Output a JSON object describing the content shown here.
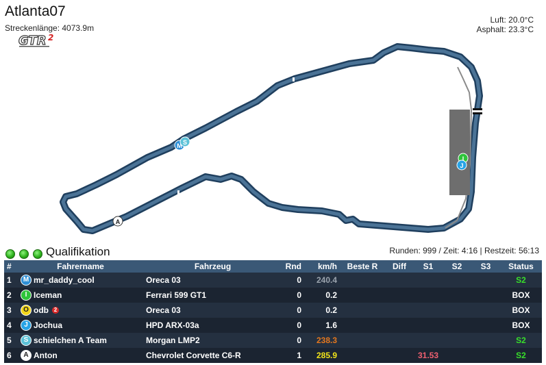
{
  "track": {
    "name": "Atlanta07",
    "length": "Streckenlänge: 4073.9m",
    "logo_text": "GTR2"
  },
  "weather": {
    "air": "Luft: 20.0°C",
    "asphalt": "Asphalt: 23.3°C"
  },
  "map": {
    "markers": [
      {
        "letter": "M",
        "color": "#2e8fd6"
      },
      {
        "letter": "S",
        "color": "#5cc2d8"
      },
      {
        "letter": "I",
        "color": "#2ec43a"
      },
      {
        "letter": "J",
        "color": "#27a3e6"
      },
      {
        "letter": "A",
        "color": "#ffffff"
      }
    ]
  },
  "session": {
    "name": "Qualifikation",
    "info": "Runden: 999 / Zeit: 4:16 | Restzeit: 56:13"
  },
  "table": {
    "headers": [
      "#",
      "Fahrername",
      "Fahrzeug",
      "Rnd",
      "km/h",
      "Beste R",
      "Diff",
      "S1",
      "S2",
      "S3",
      "Status"
    ],
    "rows": [
      {
        "pos": "1",
        "badge": "M",
        "badge_bg": "#2e8fd6",
        "badge_fg": "#ffffff",
        "name": "mr_daddy_cool",
        "flag": "",
        "car": "Oreca 03",
        "rnd": "0",
        "kmh": "240.4",
        "kmh_class": "grey",
        "best": "",
        "diff": "",
        "s1": "",
        "s2": "",
        "s3": "",
        "status": "S2",
        "status_class": "green"
      },
      {
        "pos": "2",
        "badge": "I",
        "badge_bg": "#2ec43a",
        "badge_fg": "#ffffff",
        "name": "Iceman",
        "flag": "",
        "car": "Ferrari 599 GT1",
        "rnd": "0",
        "kmh": "0.2",
        "kmh_class": "",
        "best": "",
        "diff": "",
        "s1": "",
        "s2": "",
        "s3": "",
        "status": "BOX",
        "status_class": ""
      },
      {
        "pos": "3",
        "badge": "O",
        "badge_bg": "#f2d51a",
        "badge_fg": "#222222",
        "name": "odb",
        "flag": "2",
        "car": "Oreca 03",
        "rnd": "0",
        "kmh": "0.2",
        "kmh_class": "",
        "best": "",
        "diff": "",
        "s1": "",
        "s2": "",
        "s3": "",
        "status": "BOX",
        "status_class": ""
      },
      {
        "pos": "4",
        "badge": "J",
        "badge_bg": "#27a3e6",
        "badge_fg": "#ffffff",
        "name": "Jochua",
        "flag": "",
        "car": "HPD ARX-03a",
        "rnd": "0",
        "kmh": "1.6",
        "kmh_class": "",
        "best": "",
        "diff": "",
        "s1": "",
        "s2": "",
        "s3": "",
        "status": "BOX",
        "status_class": ""
      },
      {
        "pos": "5",
        "badge": "S",
        "badge_bg": "#5cc2d8",
        "badge_fg": "#ffffff",
        "name": "schielchen A Team",
        "flag": "",
        "car": "Morgan LMP2",
        "rnd": "0",
        "kmh": "238.3",
        "kmh_class": "orange",
        "best": "",
        "diff": "",
        "s1": "",
        "s2": "",
        "s3": "",
        "status": "S2",
        "status_class": "green"
      },
      {
        "pos": "6",
        "badge": "A",
        "badge_bg": "#ffffff",
        "badge_fg": "#222222",
        "name": "Anton",
        "flag": "",
        "car": "Chevrolet Corvette C6-R",
        "rnd": "1",
        "kmh": "285.9",
        "kmh_class": "yellow",
        "best": "",
        "diff": "",
        "s1": "31.53",
        "s2": "",
        "s3": "",
        "status": "S2",
        "status_class": "green"
      }
    ]
  }
}
